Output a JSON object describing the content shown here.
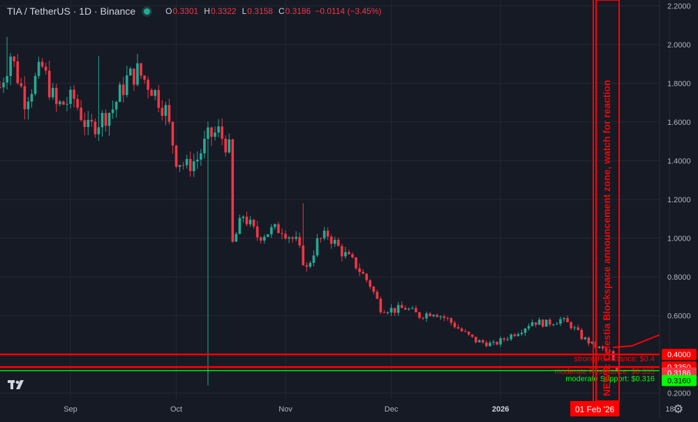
{
  "header": {
    "symbol": "TIA / TetherUS · 1D · Binance",
    "open_label": "O",
    "open_value": "0.3301",
    "high_label": "H",
    "high_value": "0.3322",
    "low_label": "L",
    "low_value": "0.3158",
    "close_label": "C",
    "close_value": "0.3186",
    "change": "−0.0114 (−3.45%)"
  },
  "icons": {
    "logo": "tradingview-logo-icon",
    "settings": "gear-icon"
  },
  "colors": {
    "up": "#22ab94",
    "down": "#f23645",
    "annotation_red": "#ff0000",
    "support_green": "#00ff00",
    "grid": "#232834",
    "axis_text": "#b2b5be"
  },
  "chart_data": {
    "type": "candlestick",
    "y_axis": {
      "min": 0.17,
      "max": 2.23,
      "ticks": [
        "2.2000",
        "2.0000",
        "1.8000",
        "1.6000",
        "1.4000",
        "1.2000",
        "1.0000",
        "0.8000",
        "0.6000",
        "0.4000",
        "0.2000"
      ]
    },
    "x_axis": {
      "labels": [
        "Sep",
        "Oct",
        "Nov",
        "Dec",
        "2026",
        "Feb 18"
      ],
      "display_labels": [
        "Sep",
        "Oct",
        "Nov",
        "Dec",
        "2026",
        "18"
      ]
    },
    "ohlc_path": [
      [
        "Aug 12",
        1.78
      ],
      [
        "Aug 15",
        1.95
      ],
      [
        "Aug 19",
        1.72
      ],
      [
        "Aug 24",
        1.88
      ],
      [
        "Aug 28",
        1.68
      ],
      [
        "Sep 2",
        1.72
      ],
      [
        "Sep 6",
        1.56
      ],
      [
        "Sep 10",
        1.62
      ],
      [
        "Sep 13",
        1.67
      ],
      [
        "Sep 17",
        1.82
      ],
      [
        "Sep 20",
        1.86
      ],
      [
        "Sep 24",
        1.78
      ],
      [
        "Sep 28",
        1.66
      ],
      [
        "Oct 1",
        1.41
      ],
      [
        "Oct 4",
        1.37
      ],
      [
        "Oct 7",
        1.41
      ],
      [
        "Oct 10",
        1.52
      ],
      [
        "Oct 13",
        1.55
      ],
      [
        "Oct 16",
        1.46
      ],
      [
        "Oct 17",
        0.97
      ],
      [
        "Oct 20",
        1.12
      ],
      [
        "Oct 24",
        1.01
      ],
      [
        "Oct 28",
        1.04
      ],
      [
        "Oct 31",
        1.05
      ],
      [
        "Nov 4",
        0.98
      ],
      [
        "Nov 7",
        0.84
      ],
      [
        "Nov 10",
        0.98
      ],
      [
        "Nov 13",
        1.02
      ],
      [
        "Nov 17",
        0.93
      ],
      [
        "Nov 21",
        0.86
      ],
      [
        "Nov 25",
        0.76
      ],
      [
        "Nov 28",
        0.64
      ],
      [
        "Dec 2",
        0.63
      ],
      [
        "Dec 5",
        0.64
      ],
      [
        "Dec 9",
        0.6
      ],
      [
        "Dec 13",
        0.62
      ],
      [
        "Dec 17",
        0.58
      ],
      [
        "Dec 21",
        0.52
      ],
      [
        "Dec 25",
        0.47
      ],
      [
        "Dec 30",
        0.45
      ],
      [
        "Jan 3",
        0.49
      ],
      [
        "Jan 7",
        0.53
      ],
      [
        "Jan 10",
        0.57
      ],
      [
        "Jan 14",
        0.56
      ],
      [
        "Jan 18",
        0.58
      ],
      [
        "Jan 21",
        0.55
      ],
      [
        "Jan 24",
        0.49
      ],
      [
        "Jan 28",
        0.44
      ],
      [
        "Feb 1",
        0.41
      ],
      [
        "Feb 3",
        0.3186
      ]
    ],
    "horizontal_levels": [
      {
        "price": 0.4,
        "label": "strong Resistance: $0.4",
        "axis_label": "0.4000",
        "color": "#ff0000"
      },
      {
        "price": 0.335,
        "label": "moderate Resistance: $0.335",
        "axis_label": "0.3350",
        "color": "#ff0000"
      },
      {
        "price": 0.316,
        "label": "moderate Support: $0.316",
        "axis_label": "0.3160",
        "color": "#00ff00"
      }
    ],
    "current_price": {
      "price": 0.3186,
      "axis_label": "0.3186"
    },
    "news_marker": {
      "date": "01 Feb '26",
      "text": "NEWS: Celestia Blockspace announcement zone, watch for reaction"
    }
  }
}
